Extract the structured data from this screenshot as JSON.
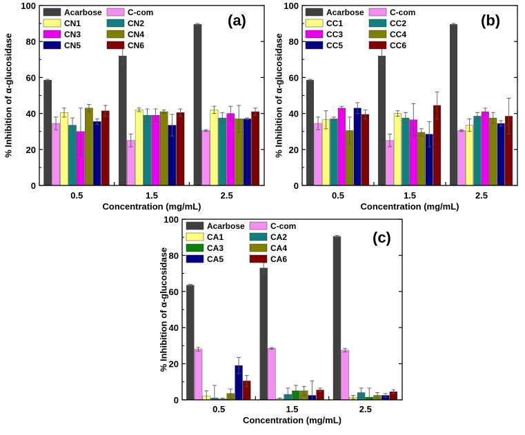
{
  "palette": {
    "Acarbose": "#404040",
    "C-com": "#f58ef5",
    "1": "#ffff80",
    "2": "#128080",
    "3": "#ec00ec",
    "4": "#808000",
    "5": "#020080",
    "6": "#7f0000",
    "A3": "#0a800a"
  },
  "chart_data": [
    {
      "type": "bar",
      "panel_label": "(a)",
      "xlabel": "Concentration (mg/mL)",
      "ylabel": "% Inhibition of α-glucosidase",
      "categories": [
        "0.5",
        "1.5",
        "2.5"
      ],
      "ylim": [
        0,
        100
      ],
      "yticks": [
        "0",
        "20",
        "40",
        "60",
        "80",
        "100"
      ],
      "series": [
        {
          "name": "Acarbose",
          "values": [
            58.5,
            72.0,
            89.5
          ],
          "errors": [
            0.5,
            4.5,
            0.5
          ]
        },
        {
          "name": "C-com",
          "values": [
            34.5,
            25.0,
            30.5
          ],
          "errors": [
            3.5,
            3.5,
            0.5
          ]
        },
        {
          "name": "CN1",
          "values": [
            40.5,
            42.0,
            42.0
          ],
          "errors": [
            2.5,
            1.0,
            2.0
          ]
        },
        {
          "name": "CN2",
          "values": [
            33.5,
            39.0,
            37.5
          ],
          "errors": [
            4.0,
            3.5,
            3.0
          ]
        },
        {
          "name": "CN3",
          "values": [
            30.0,
            39.0,
            40.0
          ],
          "errors": [
            13.0,
            3.5,
            4.0
          ]
        },
        {
          "name": "CN4",
          "values": [
            43.0,
            41.0,
            37.0
          ],
          "errors": [
            2.0,
            1.0,
            7.5
          ]
        },
        {
          "name": "CN5",
          "values": [
            35.5,
            33.5,
            37.0
          ],
          "errors": [
            1.5,
            6.0,
            0.5
          ]
        },
        {
          "name": "CN6",
          "values": [
            41.5,
            40.5,
            41.0
          ],
          "errors": [
            3.0,
            2.0,
            2.0
          ]
        }
      ]
    },
    {
      "type": "bar",
      "panel_label": "(b)",
      "xlabel": "Concentration (mg/mL)",
      "ylabel": "% Inhibition of α-glucosidase",
      "categories": [
        "0.5",
        "1.5",
        "2.5"
      ],
      "ylim": [
        0,
        100
      ],
      "yticks": [
        "0",
        "20",
        "40",
        "60",
        "80",
        "100"
      ],
      "series": [
        {
          "name": "Acarbose",
          "values": [
            58.5,
            72.0,
            89.5
          ],
          "errors": [
            0.5,
            4.5,
            0.5
          ]
        },
        {
          "name": "C-com",
          "values": [
            34.5,
            25.0,
            30.5
          ],
          "errors": [
            3.5,
            3.5,
            0.5
          ]
        },
        {
          "name": "CC1",
          "values": [
            36.5,
            40.0,
            33.5
          ],
          "errors": [
            5.0,
            1.5,
            3.5
          ]
        },
        {
          "name": "CC2",
          "values": [
            37.0,
            37.5,
            38.5
          ],
          "errors": [
            1.0,
            3.0,
            2.0
          ]
        },
        {
          "name": "CC3",
          "values": [
            43.0,
            36.5,
            41.0
          ],
          "errors": [
            1.0,
            9.0,
            2.0
          ]
        },
        {
          "name": "CC4",
          "values": [
            30.5,
            29.5,
            37.5
          ],
          "errors": [
            7.5,
            2.0,
            3.0
          ]
        },
        {
          "name": "CC5",
          "values": [
            43.0,
            28.5,
            34.5
          ],
          "errors": [
            3.0,
            7.0,
            1.5
          ]
        },
        {
          "name": "CC6",
          "values": [
            39.5,
            44.5,
            38.5
          ],
          "errors": [
            2.5,
            7.5,
            10.0
          ]
        }
      ]
    },
    {
      "type": "bar",
      "panel_label": "(c)",
      "xlabel": "Concentration (mg/mL)",
      "ylabel": "% Inhibition of α-glucosidase",
      "categories": [
        "0.5",
        "1.5",
        "2.5"
      ],
      "ylim": [
        0,
        100
      ],
      "yticks": [
        "0",
        "20",
        "40",
        "60",
        "80",
        "100"
      ],
      "series": [
        {
          "name": "Acarbose",
          "values": [
            63.5,
            73.0,
            90.5
          ],
          "errors": [
            0.5,
            3.0,
            0.5
          ]
        },
        {
          "name": "C-com",
          "values": [
            28.0,
            28.5,
            27.5
          ],
          "errors": [
            1.0,
            0.5,
            1.0
          ]
        },
        {
          "name": "CA1",
          "values": [
            2.0,
            0.5,
            1.5
          ],
          "errors": [
            3.0,
            0.5,
            1.0
          ]
        },
        {
          "name": "CA2",
          "values": [
            1.0,
            3.0,
            4.0
          ],
          "errors": [
            7.0,
            3.5,
            2.5
          ]
        },
        {
          "name": "CA3",
          "values": [
            0.5,
            5.0,
            1.5
          ],
          "errors": [
            0.5,
            3.0,
            5.0
          ]
        },
        {
          "name": "CA4",
          "values": [
            3.5,
            5.0,
            2.5
          ],
          "errors": [
            2.5,
            2.5,
            1.5
          ]
        },
        {
          "name": "CA5",
          "values": [
            19.0,
            2.5,
            2.5
          ],
          "errors": [
            4.5,
            8.0,
            1.0
          ]
        },
        {
          "name": "CA6",
          "values": [
            10.5,
            5.5,
            4.5
          ],
          "errors": [
            3.0,
            1.0,
            1.0
          ]
        }
      ]
    }
  ]
}
